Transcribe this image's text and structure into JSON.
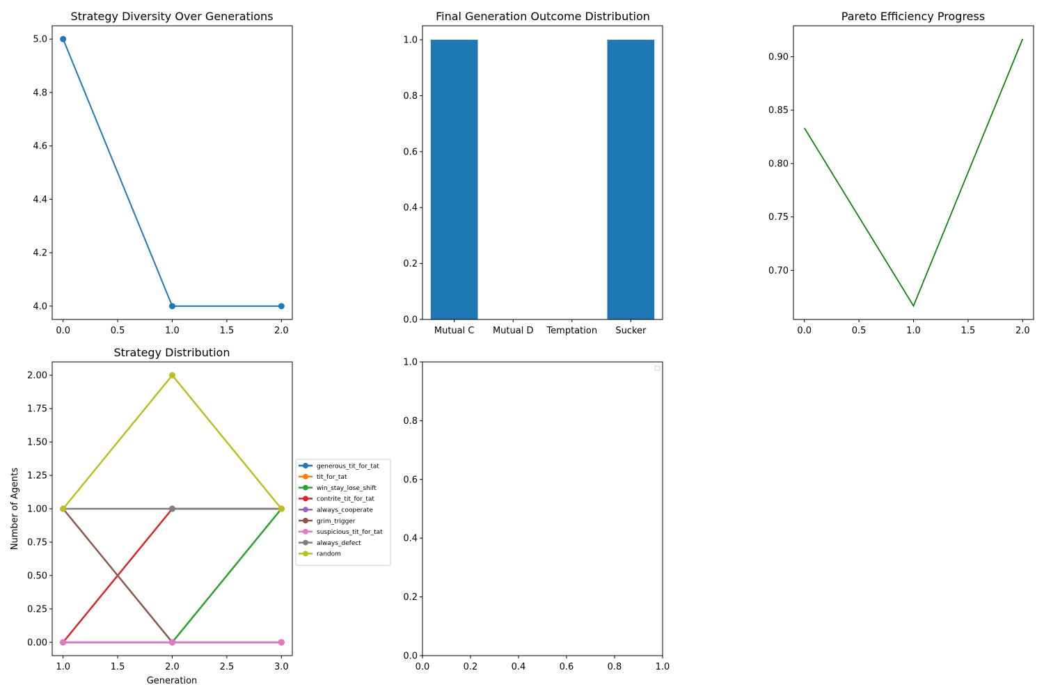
{
  "figure": {
    "background": "#ffffff"
  },
  "chart_data": [
    {
      "id": "diversity",
      "type": "line",
      "title": "Strategy Diversity Over Generations",
      "xlabel": "",
      "ylabel": "",
      "xlim": [
        -0.1,
        2.1
      ],
      "ylim": [
        3.95,
        5.05
      ],
      "xticks": [
        0.0,
        0.5,
        1.0,
        1.5,
        2.0
      ],
      "xtick_labels": [
        "0.0",
        "0.5",
        "1.0",
        "1.5",
        "2.0"
      ],
      "yticks": [
        4.0,
        4.2,
        4.4,
        4.6,
        4.8,
        5.0
      ],
      "ytick_labels": [
        "4.0",
        "4.2",
        "4.4",
        "4.6",
        "4.8",
        "5.0"
      ],
      "grid": false,
      "series": [
        {
          "x": [
            0,
            1,
            2
          ],
          "y": [
            5,
            4,
            4
          ],
          "color": "#1f77b4",
          "markers": true
        }
      ]
    },
    {
      "id": "outcomes",
      "type": "bar",
      "title": "Final Generation Outcome Distribution",
      "xlabel": "",
      "ylabel": "",
      "categories": [
        "Mutual C",
        "Mutual D",
        "Temptation",
        "Sucker"
      ],
      "values": [
        1.0,
        0.0,
        0.0,
        1.0
      ],
      "ylim": [
        0,
        1.05
      ],
      "yticks": [
        0.0,
        0.2,
        0.4,
        0.6,
        0.8,
        1.0
      ],
      "ytick_labels": [
        "0.0",
        "0.2",
        "0.4",
        "0.6",
        "0.8",
        "1.0"
      ],
      "color": "#1f77b4",
      "grid": false
    },
    {
      "id": "pareto",
      "type": "line",
      "title": "Pareto Efficiency Progress",
      "xlabel": "",
      "ylabel": "",
      "xlim": [
        -0.1,
        2.1
      ],
      "ylim": [
        0.654,
        0.929
      ],
      "xticks": [
        0.0,
        0.5,
        1.0,
        1.5,
        2.0
      ],
      "xtick_labels": [
        "0.0",
        "0.5",
        "1.0",
        "1.5",
        "2.0"
      ],
      "yticks": [
        0.7,
        0.75,
        0.8,
        0.85,
        0.9
      ],
      "ytick_labels": [
        "0.70",
        "0.75",
        "0.80",
        "0.85",
        "0.90"
      ],
      "grid": false,
      "series": [
        {
          "x": [
            0,
            1,
            2
          ],
          "y": [
            0.8333,
            0.6667,
            0.9167
          ],
          "color": "#008000",
          "markers": false
        }
      ]
    },
    {
      "id": "distribution",
      "type": "line",
      "title": "Strategy Distribution",
      "xlabel": "Generation",
      "ylabel": "Number of Agents",
      "xlim": [
        0.9,
        3.1
      ],
      "ylim": [
        -0.1,
        2.1
      ],
      "xticks": [
        1.0,
        1.5,
        2.0,
        2.5,
        3.0
      ],
      "xtick_labels": [
        "1.0",
        "1.5",
        "2.0",
        "2.5",
        "3.0"
      ],
      "yticks": [
        0.0,
        0.25,
        0.5,
        0.75,
        1.0,
        1.25,
        1.5,
        1.75,
        2.0
      ],
      "ytick_labels": [
        "0.00",
        "0.25",
        "0.50",
        "0.75",
        "1.00",
        "1.25",
        "1.50",
        "1.75",
        "2.00"
      ],
      "grid": false,
      "legend_position": "outside-right",
      "x": [
        1,
        2,
        3
      ],
      "series": [
        {
          "name": "generous_tit_for_tat",
          "values": [
            0,
            0,
            0
          ],
          "color": "#1f77b4"
        },
        {
          "name": "tit_for_tat",
          "values": [
            0,
            0,
            0
          ],
          "color": "#ff7f0e"
        },
        {
          "name": "win_stay_lose_shift",
          "values": [
            0,
            0,
            1
          ],
          "color": "#2ca02c"
        },
        {
          "name": "contrite_tit_for_tat",
          "values": [
            0,
            1,
            1
          ],
          "color": "#d62728"
        },
        {
          "name": "always_cooperate",
          "values": [
            0,
            0,
            0
          ],
          "color": "#9467bd"
        },
        {
          "name": "grim_trigger",
          "values": [
            1,
            0,
            0
          ],
          "color": "#8c564b"
        },
        {
          "name": "suspicious_tit_for_tat",
          "values": [
            0,
            0,
            0
          ],
          "color": "#e377c2"
        },
        {
          "name": "always_defect",
          "values": [
            1,
            1,
            1
          ],
          "color": "#7f7f7f"
        },
        {
          "name": "random",
          "values": [
            1,
            2,
            1
          ],
          "color": "#bcbd22"
        }
      ]
    },
    {
      "id": "empty",
      "type": "line",
      "title": "",
      "xlabel": "",
      "ylabel": "",
      "xlim": [
        0,
        1
      ],
      "ylim": [
        0,
        1
      ],
      "xticks": [
        0.0,
        0.2,
        0.4,
        0.6,
        0.8,
        1.0
      ],
      "xtick_labels": [
        "0.0",
        "0.2",
        "0.4",
        "0.6",
        "0.8",
        "1.0"
      ],
      "yticks": [
        0.0,
        0.2,
        0.4,
        0.6,
        0.8,
        1.0
      ],
      "ytick_labels": [
        "0.0",
        "0.2",
        "0.4",
        "0.6",
        "0.8",
        "1.0"
      ],
      "grid": false,
      "legend_position": "top-right",
      "series": []
    }
  ]
}
